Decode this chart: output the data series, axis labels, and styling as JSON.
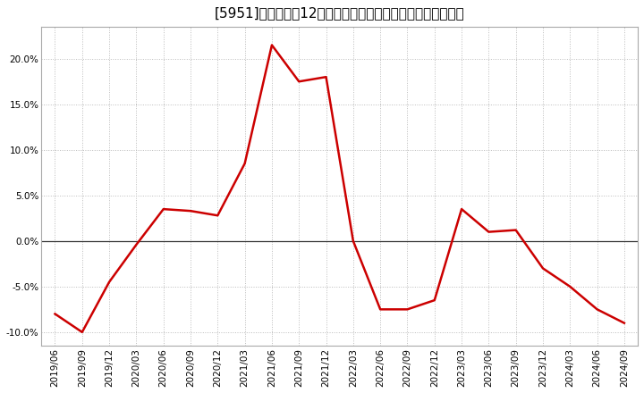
{
  "title": "[5951]　売上高の12か月移動合計の対前年同期増減率の推移",
  "x_labels": [
    "2019/06",
    "2019/09",
    "2019/12",
    "2020/03",
    "2020/06",
    "2020/09",
    "2020/12",
    "2021/03",
    "2021/06",
    "2021/09",
    "2021/12",
    "2022/03",
    "2022/06",
    "2022/09",
    "2022/12",
    "2023/03",
    "2023/06",
    "2023/09",
    "2023/12",
    "2024/03",
    "2024/06",
    "2024/09"
  ],
  "y_values": [
    -0.08,
    -0.1,
    -0.045,
    -0.004,
    0.035,
    0.033,
    0.028,
    0.085,
    0.215,
    0.175,
    0.18,
    0.0,
    -0.075,
    -0.075,
    -0.065,
    0.035,
    0.01,
    0.012,
    -0.03,
    -0.05,
    -0.075,
    -0.09
  ],
  "line_color": "#cc0000",
  "bg_color": "#ffffff",
  "plot_bg_color": "#ffffff",
  "grid_color": "#bbbbbb",
  "zero_line_color": "#333333",
  "ylim": [
    -0.115,
    0.235
  ],
  "yticks": [
    -0.1,
    -0.05,
    0.0,
    0.05,
    0.1,
    0.15,
    0.2
  ],
  "title_fontsize": 11,
  "tick_fontsize": 7.5,
  "line_width": 1.8
}
